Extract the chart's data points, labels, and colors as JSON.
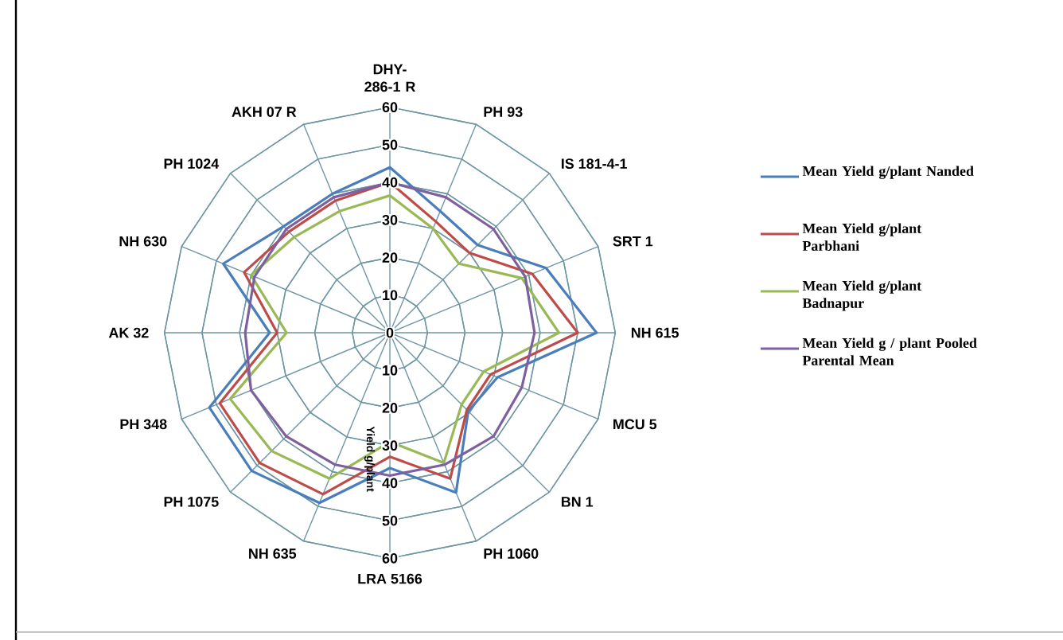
{
  "chart_data": {
    "type": "radar",
    "categories": [
      "DHY-286-1 R",
      "PH 93",
      "IS 181-4-1",
      "SRT 1",
      "NH 615",
      "MCU 5",
      "BN 1",
      "PH 1060",
      "LRA 5166",
      "NH 635",
      "PH 1075",
      "PH 348",
      "AK 32",
      "NH 630",
      "PH 1024",
      "AKH 07 R"
    ],
    "series": [
      {
        "name": "Mean Yield g/plant Nanded",
        "color": "#4a7ebb",
        "values": [
          44,
          35,
          33,
          45,
          55,
          31,
          29.5,
          46,
          36,
          49,
          52,
          52,
          32,
          48,
          40,
          40
        ]
      },
      {
        "name": "Mean Yield g/plant Parbhani",
        "color": "#be4b48",
        "values": [
          40,
          32,
          30,
          41,
          50,
          29,
          29,
          42,
          33,
          46.5,
          49,
          49,
          30,
          42,
          38,
          38
        ]
      },
      {
        "name": "Mean Yield g/plant Badnapur",
        "color": "#98b954",
        "values": [
          36.5,
          30,
          26,
          38,
          45,
          27,
          27,
          37.5,
          29,
          42,
          44.5,
          46,
          27.5,
          40,
          36,
          35
        ]
      },
      {
        "name": "Mean Yield g / plant Pooled Parental Mean",
        "color": "#7d60a0",
        "values": [
          40,
          39,
          39,
          39,
          38.5,
          38,
          39,
          38,
          38,
          38,
          39,
          40,
          38.5,
          39,
          39,
          39
        ]
      }
    ],
    "ylabel": "Yield g/plant",
    "ylim": [
      0,
      60
    ],
    "yticks": [
      0,
      10,
      20,
      30,
      40,
      50,
      60,
      10,
      20,
      30,
      40,
      50,
      60
    ],
    "grid": true,
    "legend": "right"
  }
}
